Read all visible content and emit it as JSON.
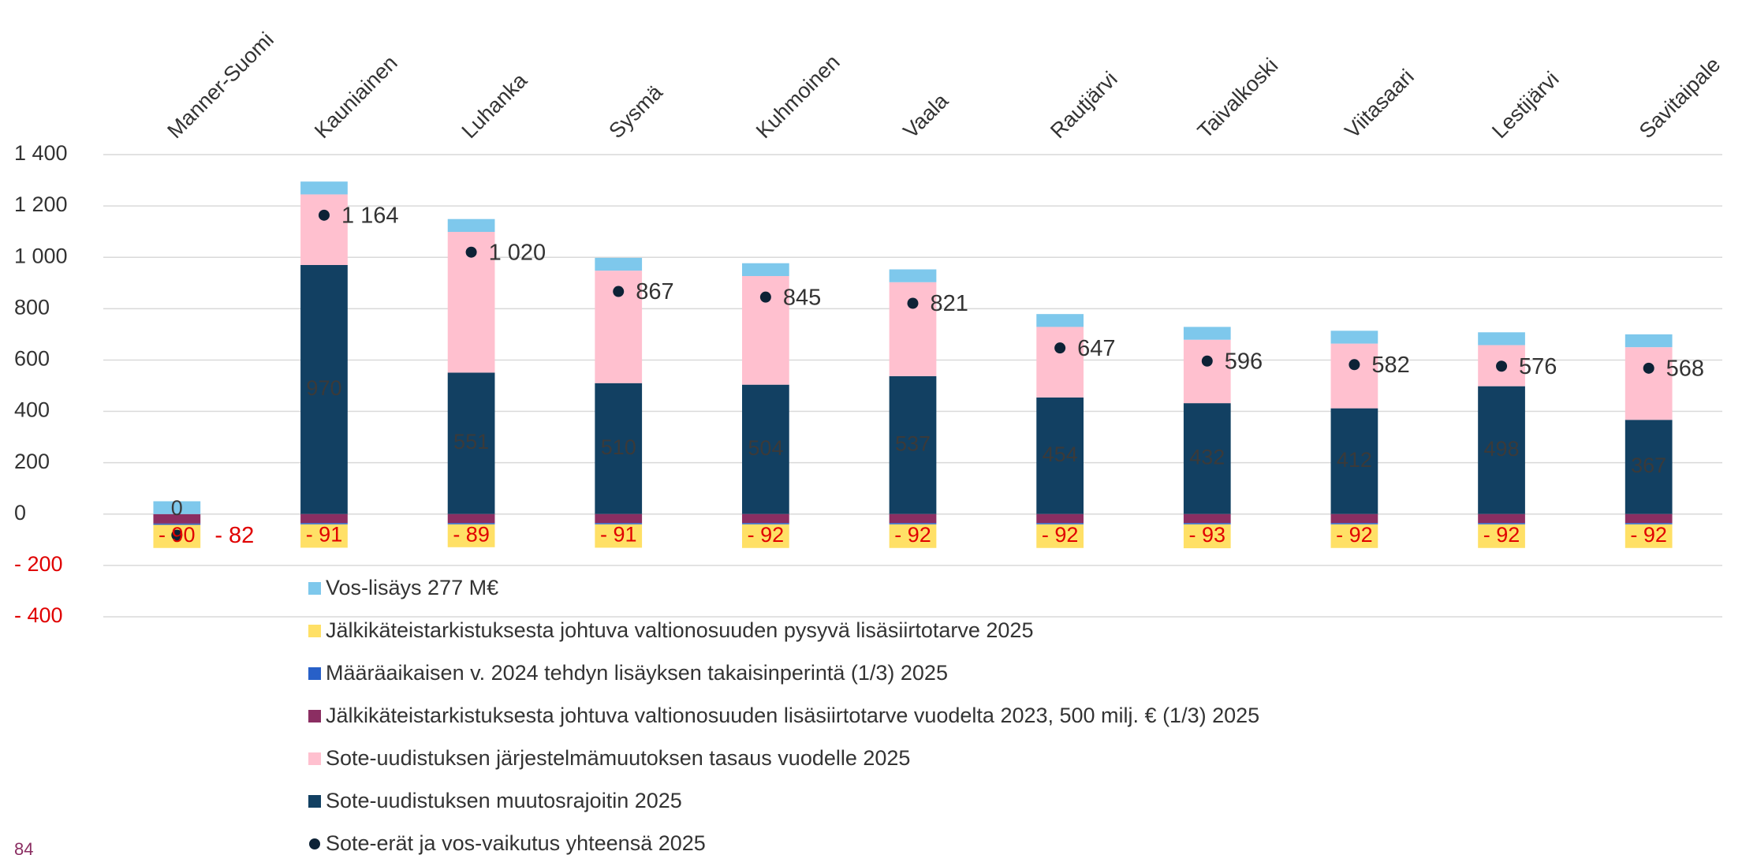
{
  "chart_data": {
    "type": "stacked_bar",
    "categories": [
      "Manner-Suomi",
      "Kauniainen",
      "Luhanka",
      "Sysmä",
      "Kuhmoinen",
      "Vaala",
      "Rautjärvi",
      "Taivalkoski",
      "Viitasaari",
      "Lestijärvi",
      "Savitaipale"
    ],
    "series": [
      {
        "name": "Vos-lisäys 277 M€",
        "color": "#7ec8ec",
        "values": [
          50,
          50,
          50,
          50,
          50,
          50,
          50,
          50,
          50,
          50,
          50
        ]
      },
      {
        "name": "Jälkikäteistarkistuksesta johtuva valtionosuuden pysyvä lisäsiirtotarve 2025",
        "color": "#ffe066",
        "values": [
          -90,
          -91,
          -89,
          -91,
          -92,
          -92,
          -92,
          -93,
          -92,
          -92,
          -92
        ],
        "value_labels": [
          "- 90",
          "- 91",
          "- 89",
          "- 91",
          "- 92",
          "- 92",
          "- 92",
          "- 93",
          "- 92",
          "- 92",
          "- 92"
        ]
      },
      {
        "name": "Määräaikaisen v. 2024 tehdyn lisäyksen takaisinperintä (1/3) 2025",
        "color": "#2860c8",
        "values": [
          -5,
          -5,
          -5,
          -5,
          -5,
          -5,
          -5,
          -5,
          -5,
          -5,
          -5
        ]
      },
      {
        "name": "Jälkikäteistarkistuksesta johtuva valtionosuuden lisäsiirtotarve vuodelta 2023, 500 milj. € (1/3) 2025",
        "color": "#8b2e62",
        "values": [
          -37,
          -35,
          -35,
          -35,
          -35,
          -35,
          -35,
          -35,
          -35,
          -35,
          -35
        ]
      },
      {
        "name": "Sote-uudistuksen järjestelmämuutoksen tasaus vuodelle 2025",
        "color": "#ffc0cf",
        "values": [
          0,
          275,
          548,
          438,
          423,
          366,
          275,
          247,
          252,
          160,
          283
        ]
      },
      {
        "name": "Sote-uudistuksen muutosrajoitin 2025",
        "color": "#124062",
        "values": [
          0,
          970,
          551,
          510,
          504,
          537,
          454,
          432,
          412,
          498,
          367
        ],
        "show_labels": true
      }
    ],
    "totals": {
      "name": "Sote-erät ja vos-vaikutus yhteensä 2025",
      "color": "#0d2236",
      "values": [
        -82,
        1164,
        1020,
        867,
        845,
        821,
        647,
        596,
        582,
        576,
        568
      ],
      "value_labels": [
        "- 82",
        "1 164",
        "1 020",
        "867",
        "845",
        "821",
        "647",
        "596",
        "582",
        "576",
        "568"
      ]
    },
    "ylim": [
      -400,
      1400
    ],
    "yticks": [
      {
        "value": -400,
        "label": "- 400"
      },
      {
        "value": -200,
        "label": "- 200"
      },
      0,
      200,
      400,
      600,
      800,
      {
        "value": 1000,
        "label": "1 000"
      },
      {
        "value": 1200,
        "label": "1 200"
      },
      {
        "value": 1400,
        "label": "1 400"
      }
    ],
    "grid": true,
    "negative_color": "#e00000",
    "legend": "bottom"
  },
  "page_number": "84"
}
